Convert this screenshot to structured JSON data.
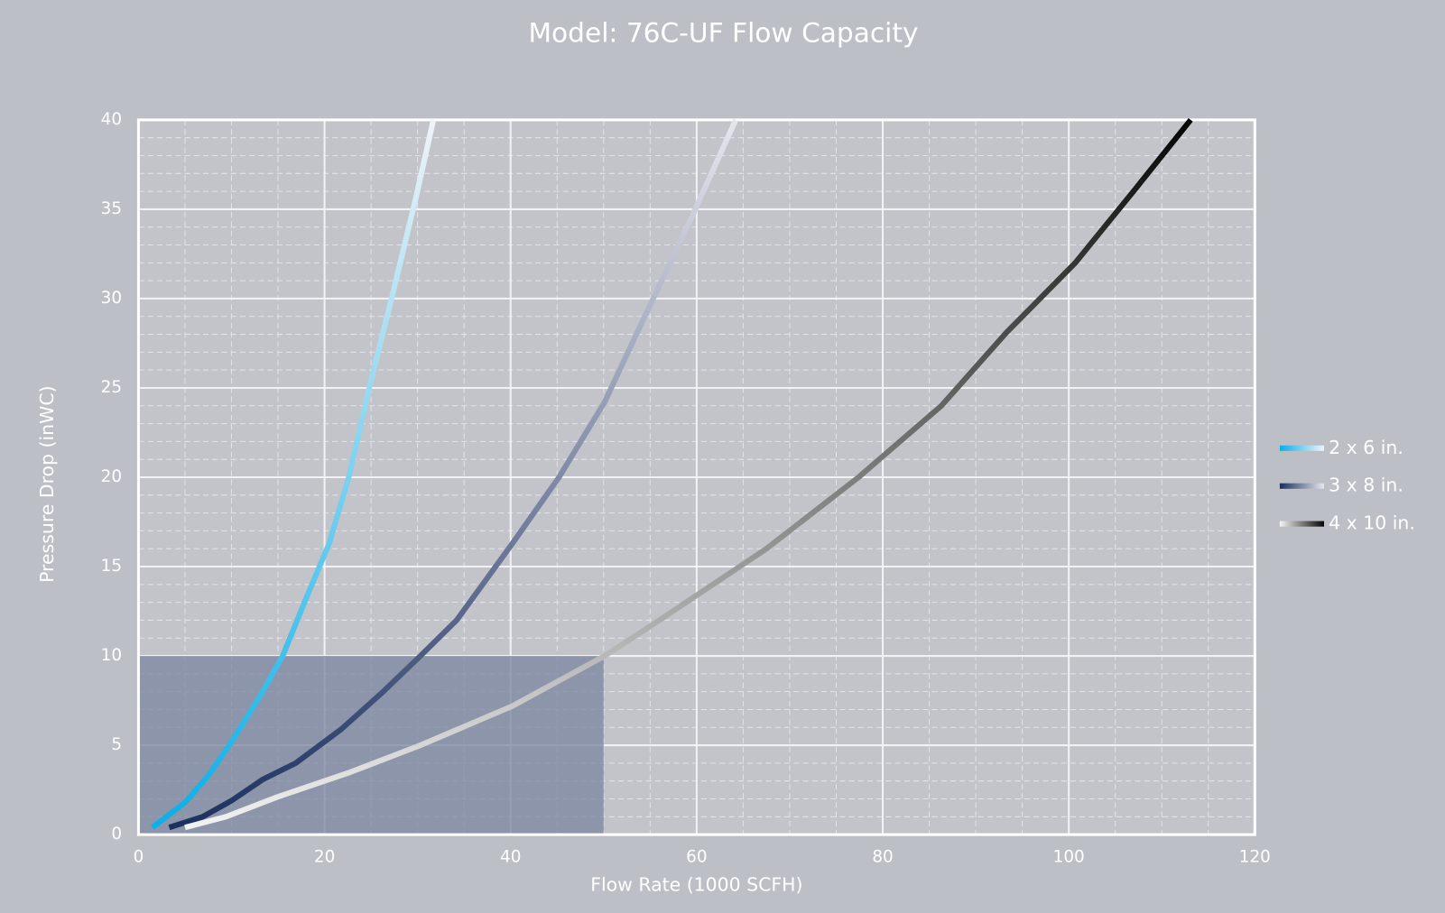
{
  "chart_data": {
    "type": "line",
    "title": "Model: 76C-UF Flow Capacity",
    "x_label": "Flow Rate (1000 SCFH)",
    "y_label": "Pressure Drop (inWC)",
    "xlim": [
      0,
      120
    ],
    "xticks": [
      0,
      20,
      40,
      60,
      80,
      100,
      120
    ],
    "ylim": [
      0,
      40
    ],
    "yticks": [
      0,
      5,
      10,
      15,
      20,
      25,
      30,
      35,
      40
    ],
    "grid": true,
    "minor_grid": {
      "x": 5,
      "y": 1
    },
    "legend": "right",
    "highlight": {
      "xlim": [
        0,
        50
      ],
      "ylim": [
        0,
        10
      ],
      "color": "#7f89a3"
    },
    "series": [
      {
        "name": "2 x 6 in.",
        "color": [
          "#0aaee6",
          "#eef4f8"
        ],
        "x": [
          1.5,
          5,
          7.5,
          10,
          13,
          15.5,
          18,
          20.5,
          22.6,
          24.8,
          27.3,
          29.8,
          31.7
        ],
        "values": [
          0.4,
          1.8,
          3.3,
          5.2,
          7.7,
          10,
          13.2,
          16.3,
          20,
          25,
          30.2,
          35.6,
          40
        ]
      },
      {
        "name": "3 x 8 in.",
        "color": [
          "#1a2f5e",
          "#e6e6ee"
        ],
        "x": [
          3.3,
          6.9,
          10,
          13.4,
          16.9,
          21.8,
          26.3,
          30.3,
          34.2,
          40.2,
          45.2,
          50.1,
          54.6,
          59.5,
          64.2
        ],
        "values": [
          0.4,
          1,
          1.9,
          3.1,
          4,
          5.9,
          8,
          10,
          12,
          16.3,
          20,
          24.2,
          29.2,
          34.6,
          40
        ]
      },
      {
        "name": "4 x 10 in.",
        "color": [
          "#f4f4f4",
          "#050505"
        ],
        "x": [
          5,
          9.4,
          14.9,
          22.8,
          30.3,
          40.2,
          50.1,
          56,
          67.5,
          77.4,
          86.3,
          93.3,
          100.7,
          107.1,
          113.1
        ],
        "values": [
          0.4,
          1,
          2.1,
          3.5,
          5,
          7.2,
          10,
          12,
          16,
          20,
          24,
          28.1,
          32,
          36.1,
          40
        ]
      }
    ]
  }
}
